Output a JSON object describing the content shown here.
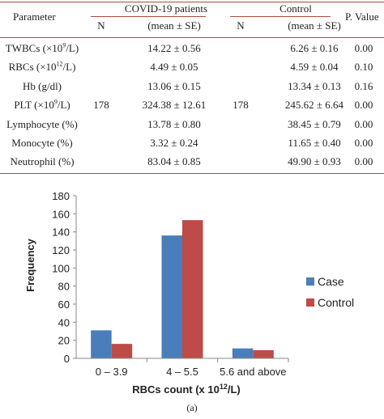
{
  "table": {
    "col_parameter": "Parameter",
    "group_covid": "COVID-19 patients",
    "group_control": "Control",
    "col_p": "P. Value",
    "col_n": "N",
    "col_mean": "(mean ± SE)",
    "rows": [
      {
        "param_pre": "TWBCs (×10",
        "param_sup": "9",
        "param_post": "/L)",
        "n_covid": "",
        "covid": "14.22 ± 0.56",
        "n_control": "",
        "control": "6.26 ± 0.16",
        "p": "0.00"
      },
      {
        "param_pre": "RBCs (×10",
        "param_sup": "12",
        "param_post": "/L)",
        "n_covid": "",
        "covid": "4.49 ± 0.05",
        "n_control": "",
        "control": "4.59 ± 0.04",
        "p": "0.10"
      },
      {
        "param_pre": "Hb (g/dl)",
        "param_sup": "",
        "param_post": "",
        "n_covid": "",
        "covid": "13.06 ± 0.15",
        "n_control": "",
        "control": "13.34 ± 0.13",
        "p": "0.16"
      },
      {
        "param_pre": "PLT (×10",
        "param_sup": "9",
        "param_post": "/L)",
        "n_covid": "178",
        "covid": "324.38 ± 12.61",
        "n_control": "178",
        "control": "245.62 ± 6.64",
        "p": "0.00"
      },
      {
        "param_pre": "Lymphocyte (%)",
        "param_sup": "",
        "param_post": "",
        "n_covid": "",
        "covid": "13.78 ± 0.80",
        "n_control": "",
        "control": "38.45 ± 0.79",
        "p": "0.00"
      },
      {
        "param_pre": "Monocyte (%)",
        "param_sup": "",
        "param_post": "",
        "n_covid": "",
        "covid": "3.32 ± 0.24",
        "n_control": "",
        "control": "11.65 ± 0.40",
        "p": "0.00"
      },
      {
        "param_pre": "Neutrophil (%)",
        "param_sup": "",
        "param_post": "",
        "n_covid": "",
        "covid": "83.04 ± 0.85",
        "n_control": "",
        "control": "49.90 ± 0.93",
        "p": "0.00"
      }
    ]
  },
  "chart_data": {
    "type": "bar",
    "categories": [
      "0 – 3.9",
      "4 – 5.5",
      "5.6 and above"
    ],
    "series": [
      {
        "name": "Case",
        "values": [
          31,
          136,
          11
        ],
        "color": "#4a7ebb"
      },
      {
        "name": "Control",
        "values": [
          16,
          153,
          9
        ],
        "color": "#be4b48"
      }
    ],
    "ylabel": "Frequency",
    "xlabel_pre": "RBCs count (x 10",
    "xlabel_sup": "12",
    "xlabel_post": "/L)",
    "ylim": [
      0,
      180
    ],
    "yticks": [
      0,
      20,
      40,
      60,
      80,
      100,
      120,
      140,
      160,
      180
    ],
    "grid": false,
    "legend_position": "right"
  },
  "caption": "(a)"
}
